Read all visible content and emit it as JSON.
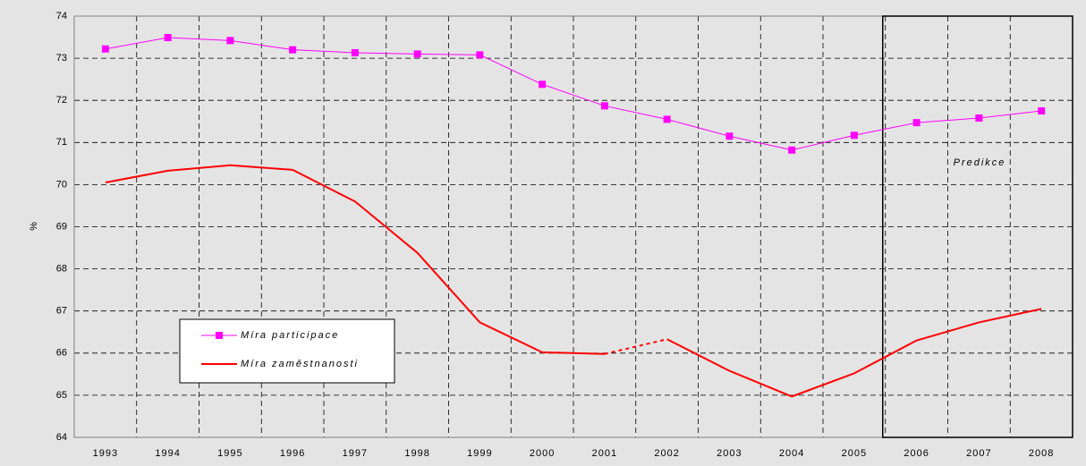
{
  "chart_data": {
    "type": "line",
    "ylabel": "%",
    "annotation": "Predikce",
    "categories": [
      "1993",
      "1994",
      "1995",
      "1996",
      "1997",
      "1998",
      "1999",
      "2000",
      "2001",
      "2002",
      "2003",
      "2004",
      "2005",
      "2006",
      "2007",
      "2008"
    ],
    "series": [
      {
        "name": "Míra participace",
        "color": "#ff00ff",
        "marker": "square",
        "values": [
          73.22,
          73.49,
          73.42,
          73.2,
          73.13,
          73.1,
          73.08,
          72.38,
          71.87,
          71.55,
          71.15,
          70.82,
          71.17,
          71.47,
          71.58,
          71.75
        ]
      },
      {
        "name": "Míra zaměstnanosti",
        "color": "#ff0000",
        "marker": "none",
        "dashed_segments": [
          [
            8,
            9
          ]
        ],
        "values": [
          70.05,
          70.33,
          70.46,
          70.35,
          69.6,
          68.38,
          66.73,
          66.02,
          65.98,
          66.33,
          65.58,
          64.97,
          65.52,
          66.3,
          66.73,
          67.05
        ]
      }
    ],
    "ylim": [
      64,
      74
    ],
    "yticks": [
      64,
      65,
      66,
      67,
      68,
      69,
      70,
      71,
      72,
      73,
      74
    ],
    "grid": true,
    "legend": "lower left"
  }
}
